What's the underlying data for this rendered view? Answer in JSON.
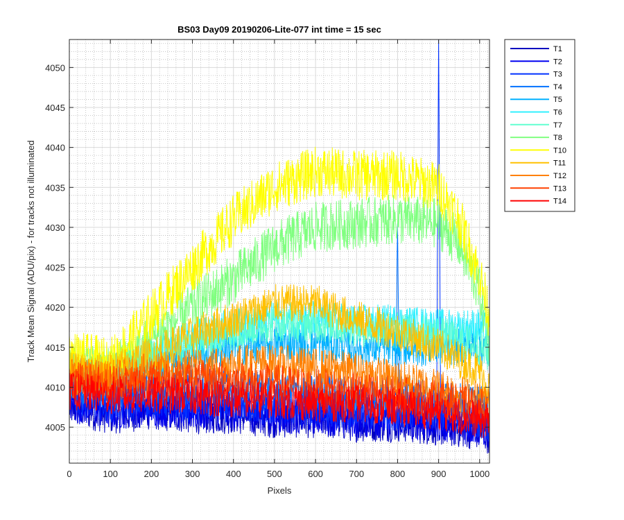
{
  "chart_data": {
    "type": "line",
    "title": "BS03 Day09 20190206-Lite-077 int time = 15 sec",
    "xlabel": "Pixels",
    "ylabel": "Track Mean Signal (ADU/pix) - for tracks not illuminated",
    "xlim": [
      0,
      1024
    ],
    "ylim": [
      4000.5,
      4053.5
    ],
    "xticks": [
      0,
      100,
      200,
      300,
      400,
      500,
      600,
      700,
      800,
      900,
      1000
    ],
    "yticks": [
      4005,
      4010,
      4015,
      4020,
      4025,
      4030,
      4035,
      4040,
      4045,
      4050
    ],
    "grid": true,
    "minor_grid": true,
    "legend_position": "outside-right",
    "series": [
      {
        "name": "T1",
        "color": "#0000bf",
        "x": [
          0,
          100,
          200,
          300,
          400,
          500,
          600,
          700,
          800,
          900,
          1000,
          1024
        ],
        "y": [
          4007.5,
          4006.5,
          4007,
          4006.5,
          4006.5,
          4006,
          4006,
          4005.5,
          4005.5,
          4005,
          4004.5,
          4004
        ]
      },
      {
        "name": "T2",
        "color": "#0000f0",
        "x": [
          0,
          100,
          200,
          300,
          400,
          500,
          600,
          700,
          800,
          900,
          1000,
          1024
        ],
        "y": [
          4008,
          4007,
          4007.5,
          4007,
          4007,
          4006.5,
          4006.5,
          4006,
          4006,
          4005.5,
          4005,
          4004.5
        ]
      },
      {
        "name": "T3",
        "color": "#0030ff",
        "x": [
          0,
          100,
          200,
          300,
          400,
          500,
          600,
          700,
          800,
          895,
          900,
          905,
          1000,
          1024
        ],
        "y": [
          4009,
          4008,
          4008.5,
          4008,
          4008,
          4007.5,
          4007.5,
          4007,
          4007,
          4007,
          4053.5,
          4007,
          4006,
          4005.5
        ]
      },
      {
        "name": "T4",
        "color": "#0070ff",
        "x": [
          0,
          100,
          200,
          300,
          400,
          500,
          600,
          700,
          795,
          800,
          805,
          900,
          1000,
          1024
        ],
        "y": [
          4010,
          4009.5,
          4010,
          4010,
          4010,
          4009.5,
          4009.5,
          4009,
          4009,
          4030.5,
          4009,
          4008.5,
          4008,
          4007
        ]
      },
      {
        "name": "T5",
        "color": "#00b0ff",
        "x": [
          0,
          100,
          200,
          300,
          400,
          500,
          600,
          700,
          800,
          900,
          1000,
          1024
        ],
        "y": [
          4011,
          4011,
          4013,
          4014,
          4015,
          4015.5,
          4015.5,
          4015,
          4015,
          4015,
          4015,
          4014.5
        ]
      },
      {
        "name": "T6",
        "color": "#30f0ff",
        "x": [
          0,
          100,
          200,
          300,
          400,
          500,
          600,
          700,
          800,
          900,
          1000,
          1024
        ],
        "y": [
          4012,
          4012,
          4014,
          4016,
          4017.5,
          4018.5,
          4018.5,
          4018,
          4018,
          4017.5,
          4017.5,
          4017
        ]
      },
      {
        "name": "T7",
        "color": "#60ffd0",
        "x": [
          0,
          100,
          200,
          300,
          400,
          500,
          600,
          700,
          800,
          900,
          1000,
          1024
        ],
        "y": [
          4011.5,
          4011.5,
          4013.5,
          4015.5,
          4017,
          4018,
          4018,
          4017.5,
          4017,
          4016.5,
          4015,
          4014
        ]
      },
      {
        "name": "T8",
        "color": "#80ff80",
        "x": [
          0,
          100,
          200,
          300,
          400,
          500,
          600,
          700,
          800,
          900,
          950,
          1000,
          1024
        ],
        "y": [
          4013,
          4012,
          4016,
          4020,
          4023.5,
          4027.5,
          4030,
          4030.5,
          4031,
          4030.5,
          4028,
          4022,
          4016
        ]
      },
      {
        "name": "T10",
        "color": "#ffff00",
        "x": [
          0,
          100,
          200,
          300,
          400,
          500,
          600,
          700,
          800,
          900,
          950,
          1000,
          1024
        ],
        "y": [
          4014,
          4013,
          4019,
          4025,
          4031,
          4035,
          4037,
          4036.5,
          4036.5,
          4035,
          4031,
          4024,
          4019
        ]
      },
      {
        "name": "T11",
        "color": "#ffc000",
        "x": [
          0,
          100,
          200,
          300,
          400,
          500,
          600,
          700,
          800,
          900,
          1000,
          1024
        ],
        "y": [
          4012,
          4012,
          4014,
          4016.5,
          4018.5,
          4020.5,
          4020.5,
          4018.5,
          4017,
          4015,
          4012,
          4010
        ]
      },
      {
        "name": "T12",
        "color": "#ff8000",
        "x": [
          0,
          100,
          200,
          300,
          400,
          500,
          600,
          700,
          800,
          900,
          1000,
          1024
        ],
        "y": [
          4011.5,
          4011,
          4012,
          4012.5,
          4013,
          4013,
          4012.5,
          4012,
          4011,
          4010,
          4008.5,
          4008
        ]
      },
      {
        "name": "T13",
        "color": "#ff4000",
        "x": [
          0,
          100,
          200,
          300,
          400,
          500,
          600,
          700,
          800,
          900,
          1000,
          1024
        ],
        "y": [
          4011,
          4010.5,
          4011,
          4011,
          4011,
          4010.5,
          4010,
          4009.5,
          4009,
          4008.5,
          4007.5,
          4007
        ]
      },
      {
        "name": "T14",
        "color": "#ff0000",
        "x": [
          0,
          100,
          200,
          300,
          400,
          500,
          600,
          700,
          800,
          900,
          1000,
          1024
        ],
        "y": [
          4009.5,
          4009,
          4009,
          4009,
          4008.5,
          4008.5,
          4008,
          4008,
          4007.5,
          4007,
          4006,
          4005.5
        ]
      }
    ]
  }
}
